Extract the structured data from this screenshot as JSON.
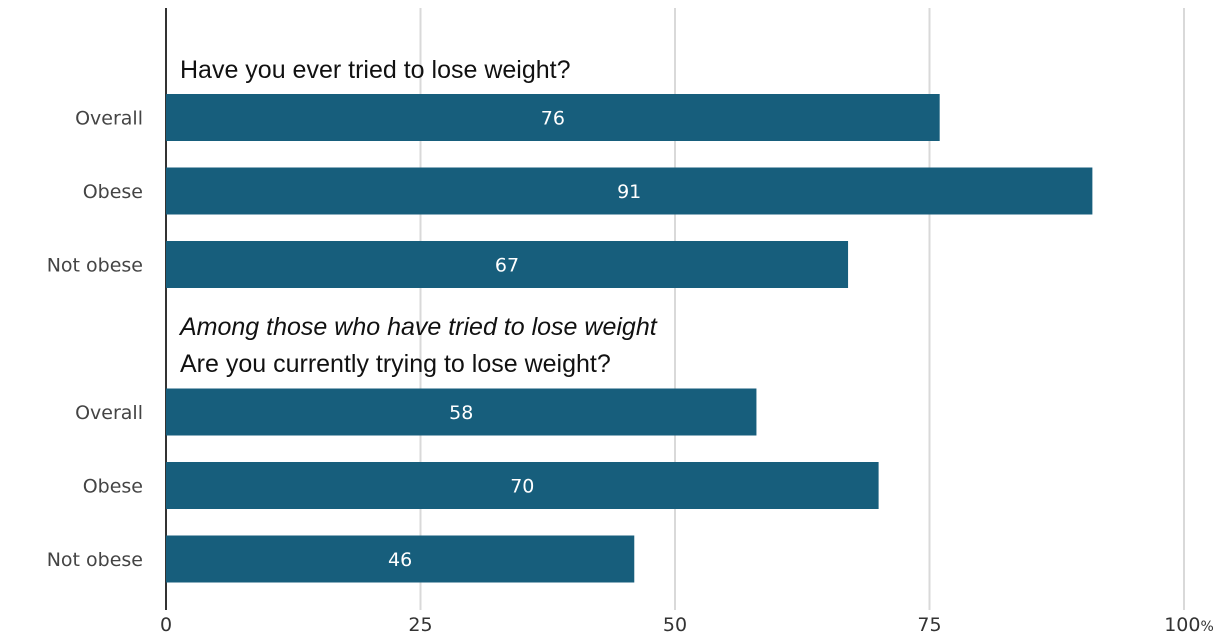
{
  "chart_data": {
    "type": "bar",
    "orientation": "horizontal",
    "x_axis": {
      "min": 0,
      "max": 100,
      "ticks": [
        0,
        25,
        50,
        75,
        100
      ],
      "unit_suffix": "%",
      "grid": true
    },
    "colors": {
      "bar": "#175e7c",
      "bar_label": "#ffffff",
      "grid": "#d9d9d9"
    },
    "groups": [
      {
        "headings": [
          {
            "text": "Have you ever tried to lose weight?",
            "italic": false
          }
        ],
        "bars": [
          {
            "label": "Overall",
            "value": 76
          },
          {
            "label": "Obese",
            "value": 91
          },
          {
            "label": "Not obese",
            "value": 67
          }
        ]
      },
      {
        "headings": [
          {
            "text": "Among those who have tried to lose weight",
            "italic": true
          },
          {
            "text": "Are you currently trying to lose weight?",
            "italic": false
          }
        ],
        "bars": [
          {
            "label": "Overall",
            "value": 58
          },
          {
            "label": "Obese",
            "value": 70
          },
          {
            "label": "Not obese",
            "value": 46
          }
        ]
      }
    ]
  }
}
